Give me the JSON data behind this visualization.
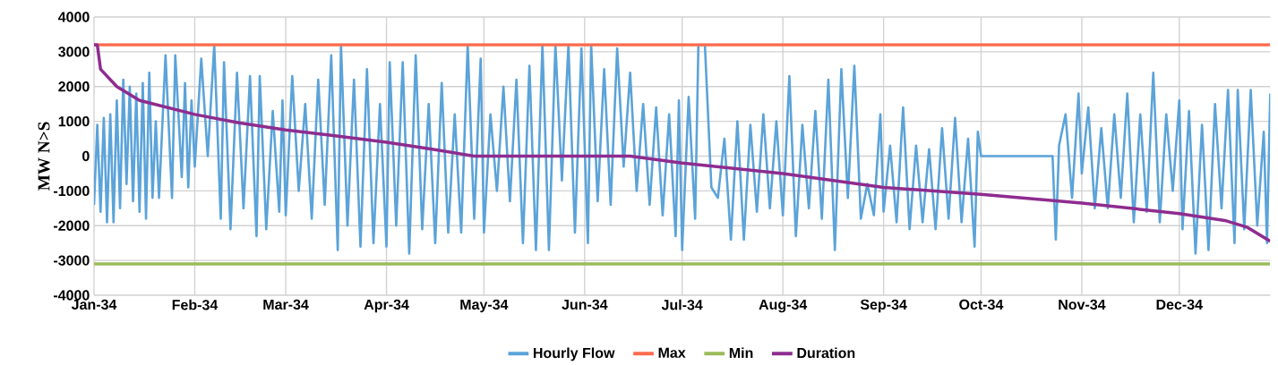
{
  "chart_data": {
    "type": "line",
    "ylabel": "MW N>S",
    "xlim": [
      "2034-01-01",
      "2034-12-29"
    ],
    "xticks": [
      {
        "value": "2034-01-01",
        "label": "Jan-34"
      },
      {
        "value": "2034-02-01",
        "label": "Feb-34"
      },
      {
        "value": "2034-03-01",
        "label": "Mar-34"
      },
      {
        "value": "2034-04-01",
        "label": "Apr-34"
      },
      {
        "value": "2034-05-01",
        "label": "May-34"
      },
      {
        "value": "2034-06-01",
        "label": "Jun-34"
      },
      {
        "value": "2034-07-01",
        "label": "Jul-34"
      },
      {
        "value": "2034-08-01",
        "label": "Aug-34"
      },
      {
        "value": "2034-09-01",
        "label": "Sep-34"
      },
      {
        "value": "2034-10-01",
        "label": "Oct-34"
      },
      {
        "value": "2034-11-01",
        "label": "Nov-34"
      },
      {
        "value": "2034-12-01",
        "label": "Dec-34"
      }
    ],
    "ylim": [
      -4000,
      4000
    ],
    "yticks": [
      -4000,
      -3000,
      -2000,
      -1000,
      0,
      1000,
      2000,
      3000,
      4000
    ],
    "grid": true,
    "legend": "bottom",
    "marker": "none",
    "line_style": "solid",
    "series": [
      {
        "name": "Hourly Flow",
        "color": "#5ba3d9",
        "x": [
          "2034-01-01",
          "2034-01-02",
          "2034-01-03",
          "2034-01-04",
          "2034-01-05",
          "2034-01-06",
          "2034-01-07",
          "2034-01-08",
          "2034-01-09",
          "2034-01-10",
          "2034-01-11",
          "2034-01-12",
          "2034-01-13",
          "2034-01-14",
          "2034-01-15",
          "2034-01-16",
          "2034-01-17",
          "2034-01-18",
          "2034-01-19",
          "2034-01-20",
          "2034-01-21",
          "2034-01-23",
          "2034-01-25",
          "2034-01-26",
          "2034-01-28",
          "2034-01-29",
          "2034-01-30",
          "2034-01-31",
          "2034-02-01",
          "2034-02-03",
          "2034-02-05",
          "2034-02-07",
          "2034-02-09",
          "2034-02-10",
          "2034-02-12",
          "2034-02-14",
          "2034-02-16",
          "2034-02-18",
          "2034-02-20",
          "2034-02-21",
          "2034-02-23",
          "2034-02-25",
          "2034-02-27",
          "2034-02-28",
          "2034-03-01",
          "2034-03-03",
          "2034-03-05",
          "2034-03-07",
          "2034-03-09",
          "2034-03-11",
          "2034-03-13",
          "2034-03-15",
          "2034-03-17",
          "2034-03-18",
          "2034-03-20",
          "2034-03-22",
          "2034-03-24",
          "2034-03-26",
          "2034-03-28",
          "2034-03-30",
          "2034-04-01",
          "2034-04-02",
          "2034-04-04",
          "2034-04-06",
          "2034-04-08",
          "2034-04-10",
          "2034-04-12",
          "2034-04-14",
          "2034-04-16",
          "2034-04-18",
          "2034-04-20",
          "2034-04-22",
          "2034-04-24",
          "2034-04-26",
          "2034-04-28",
          "2034-04-30",
          "2034-05-01",
          "2034-05-03",
          "2034-05-05",
          "2034-05-07",
          "2034-05-09",
          "2034-05-11",
          "2034-05-13",
          "2034-05-15",
          "2034-05-17",
          "2034-05-19",
          "2034-05-21",
          "2034-05-23",
          "2034-05-25",
          "2034-05-27",
          "2034-05-29",
          "2034-05-31",
          "2034-06-02",
          "2034-06-03",
          "2034-06-05",
          "2034-06-07",
          "2034-06-09",
          "2034-06-11",
          "2034-06-13",
          "2034-06-15",
          "2034-06-17",
          "2034-06-19",
          "2034-06-21",
          "2034-06-23",
          "2034-06-25",
          "2034-06-27",
          "2034-06-29",
          "2034-06-30",
          "2034-07-01",
          "2034-07-03",
          "2034-07-05",
          "2034-07-06",
          "2034-07-08",
          "2034-07-10",
          "2034-07-12",
          "2034-07-14",
          "2034-07-16",
          "2034-07-18",
          "2034-07-20",
          "2034-07-22",
          "2034-07-24",
          "2034-07-26",
          "2034-07-28",
          "2034-07-30",
          "2034-08-01",
          "2034-08-03",
          "2034-08-05",
          "2034-08-07",
          "2034-08-09",
          "2034-08-11",
          "2034-08-13",
          "2034-08-15",
          "2034-08-17",
          "2034-08-19",
          "2034-08-21",
          "2034-08-23",
          "2034-08-25",
          "2034-08-27",
          "2034-08-29",
          "2034-08-31",
          "2034-09-01",
          "2034-09-03",
          "2034-09-05",
          "2034-09-07",
          "2034-09-09",
          "2034-09-11",
          "2034-09-13",
          "2034-09-15",
          "2034-09-17",
          "2034-09-19",
          "2034-09-21",
          "2034-09-23",
          "2034-09-25",
          "2034-09-27",
          "2034-09-29",
          "2034-09-30",
          "2034-10-01",
          "2034-10-23",
          "2034-10-24",
          "2034-10-25",
          "2034-10-27",
          "2034-10-29",
          "2034-10-31",
          "2034-11-01",
          "2034-11-03",
          "2034-11-05",
          "2034-11-07",
          "2034-11-09",
          "2034-11-11",
          "2034-11-13",
          "2034-11-15",
          "2034-11-17",
          "2034-11-19",
          "2034-11-21",
          "2034-11-23",
          "2034-11-25",
          "2034-11-27",
          "2034-11-29",
          "2034-12-01",
          "2034-12-02",
          "2034-12-04",
          "2034-12-06",
          "2034-12-08",
          "2034-12-10",
          "2034-12-12",
          "2034-12-14",
          "2034-12-16",
          "2034-12-18",
          "2034-12-19",
          "2034-12-21",
          "2034-12-23",
          "2034-12-25",
          "2034-12-27",
          "2034-12-28",
          "2034-12-29"
        ],
        "values": [
          -1400,
          900,
          -1600,
          1100,
          -1900,
          1200,
          -1900,
          1600,
          -1500,
          2200,
          -800,
          2000,
          -1300,
          1800,
          -1600,
          2100,
          -1800,
          2400,
          -1200,
          1000,
          -1200,
          2900,
          -1200,
          2900,
          -600,
          2100,
          -900,
          1600,
          -300,
          2800,
          0,
          3200,
          -1800,
          2700,
          -2100,
          2400,
          -1500,
          2300,
          -2300,
          2300,
          -2100,
          1300,
          -1600,
          1600,
          -1700,
          2300,
          -1000,
          1500,
          -1800,
          2200,
          -1400,
          2900,
          -2700,
          3200,
          -2000,
          2200,
          -2600,
          2500,
          -2500,
          1500,
          -2600,
          2700,
          -2000,
          2700,
          -2800,
          2900,
          -2100,
          1500,
          -2500,
          2100,
          -2200,
          1200,
          -2200,
          3200,
          -1800,
          2800,
          -2200,
          1200,
          -1000,
          2000,
          -1300,
          2200,
          -2500,
          2600,
          -2700,
          3200,
          -2700,
          3200,
          -700,
          3200,
          -2200,
          3100,
          -2500,
          3200,
          -1300,
          2500,
          -1400,
          3100,
          -300,
          2400,
          -1000,
          1500,
          -1400,
          1400,
          -1700,
          1200,
          -2300,
          1600,
          -2700,
          1700,
          -1800,
          3200,
          3200,
          -900,
          -1200,
          500,
          -2400,
          1000,
          -2400,
          900,
          -1600,
          1200,
          -1500,
          1000,
          -1700,
          2300,
          -2300,
          900,
          -1500,
          1300,
          -1800,
          2200,
          -2700,
          2500,
          -1200,
          2600,
          -1800,
          -800,
          -1700,
          1200,
          -1600,
          300,
          -1900,
          1400,
          -2100,
          300,
          -1900,
          200,
          -2100,
          800,
          -1800,
          1100,
          -1900,
          500,
          -2600,
          700,
          0,
          0,
          -2400,
          300,
          1200,
          -1200,
          1800,
          -500,
          1400,
          -1500,
          800,
          -1500,
          1200,
          -1200,
          1800,
          -1900,
          1200,
          -1600,
          2400,
          -1900,
          1200,
          -1000,
          1600,
          -2100,
          1300,
          -2800,
          900,
          -2700,
          1500,
          -1500,
          1900,
          -2500,
          1900,
          -2100,
          1900,
          -2000,
          700,
          -2500,
          1800
        ]
      },
      {
        "name": "Max",
        "color": "#ff6a4d",
        "x": [
          "2034-01-01",
          "2034-12-29"
        ],
        "values": [
          3200,
          3200
        ]
      },
      {
        "name": "Min",
        "color": "#9bbb59",
        "x": [
          "2034-01-01",
          "2034-12-29"
        ],
        "values": [
          -3100,
          -3100
        ]
      },
      {
        "name": "Duration",
        "color": "#8e2c8f",
        "x": [
          "2034-01-01",
          "2034-01-02",
          "2034-01-03",
          "2034-01-08",
          "2034-01-15",
          "2034-02-01",
          "2034-02-15",
          "2034-03-01",
          "2034-03-15",
          "2034-04-01",
          "2034-04-15",
          "2034-04-28",
          "2034-06-15",
          "2034-07-01",
          "2034-08-01",
          "2034-09-01",
          "2034-10-01",
          "2034-11-01",
          "2034-12-01",
          "2034-12-15",
          "2034-12-22",
          "2034-12-29"
        ],
        "values": [
          3200,
          3200,
          2500,
          2000,
          1600,
          1200,
          950,
          750,
          600,
          400,
          200,
          0,
          0,
          -200,
          -500,
          -900,
          -1100,
          -1350,
          -1650,
          -1850,
          -2050,
          -2450
        ]
      }
    ]
  }
}
